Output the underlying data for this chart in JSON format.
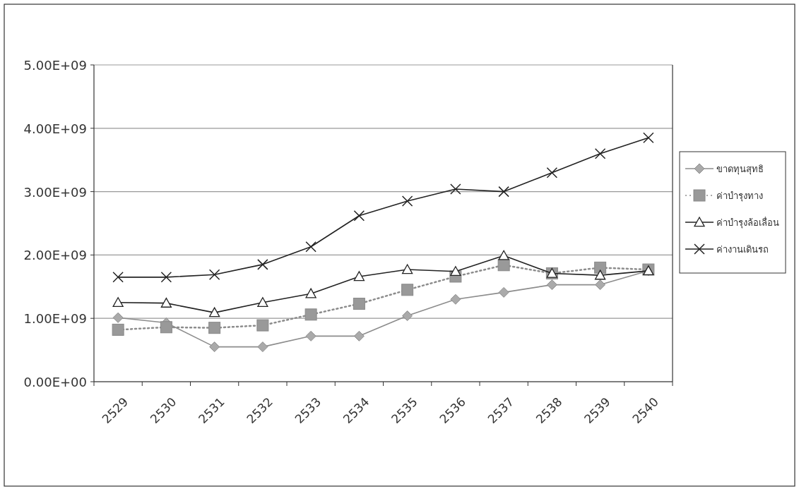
{
  "chart_data": {
    "type": "line",
    "categories": [
      "2529",
      "2530",
      "2531",
      "2532",
      "2533",
      "2534",
      "2535",
      "2536",
      "2537",
      "2538",
      "2539",
      "2540"
    ],
    "series": [
      {
        "name": "ขาดทุนสุทธิ",
        "color": "#8c8c8c",
        "marker": "diamond",
        "line_style": "solid",
        "values": [
          1010000000,
          930000000,
          550000000,
          550000000,
          720000000,
          720000000,
          1040000000,
          1300000000,
          1410000000,
          1530000000,
          1530000000,
          1750000000
        ]
      },
      {
        "name": "ค่าบำรุงทาง",
        "color": "#8c8c8c",
        "marker": "square",
        "line_style": "dotted",
        "values": [
          820000000,
          860000000,
          850000000,
          890000000,
          1060000000,
          1230000000,
          1450000000,
          1660000000,
          1840000000,
          1710000000,
          1800000000,
          1770000000
        ]
      },
      {
        "name": "ค่าบำรุงล้อเลื่อน",
        "color": "#222222",
        "marker": "triangle",
        "line_style": "solid",
        "values": [
          1250000000,
          1240000000,
          1090000000,
          1250000000,
          1390000000,
          1660000000,
          1770000000,
          1740000000,
          1990000000,
          1710000000,
          1680000000,
          1750000000
        ]
      },
      {
        "name": "ค่างานเดินรถ",
        "color": "#222222",
        "marker": "cross",
        "line_style": "solid",
        "values": [
          1650000000,
          1650000000,
          1690000000,
          1850000000,
          2130000000,
          2620000000,
          2850000000,
          3040000000,
          3000000000,
          3300000000,
          3600000000,
          3850000000
        ]
      }
    ],
    "ylim": [
      0,
      5000000000
    ],
    "yticks": [
      {
        "value": 0,
        "label": "0.00E+00"
      },
      {
        "value": 1000000000,
        "label": "1.00E+09"
      },
      {
        "value": 2000000000,
        "label": "2.00E+09"
      },
      {
        "value": 3000000000,
        "label": "3.00E+09"
      },
      {
        "value": 4000000000,
        "label": "4.00E+09"
      },
      {
        "value": 5000000000,
        "label": "5.00E+09"
      }
    ],
    "grid": "y",
    "legend": "right"
  }
}
